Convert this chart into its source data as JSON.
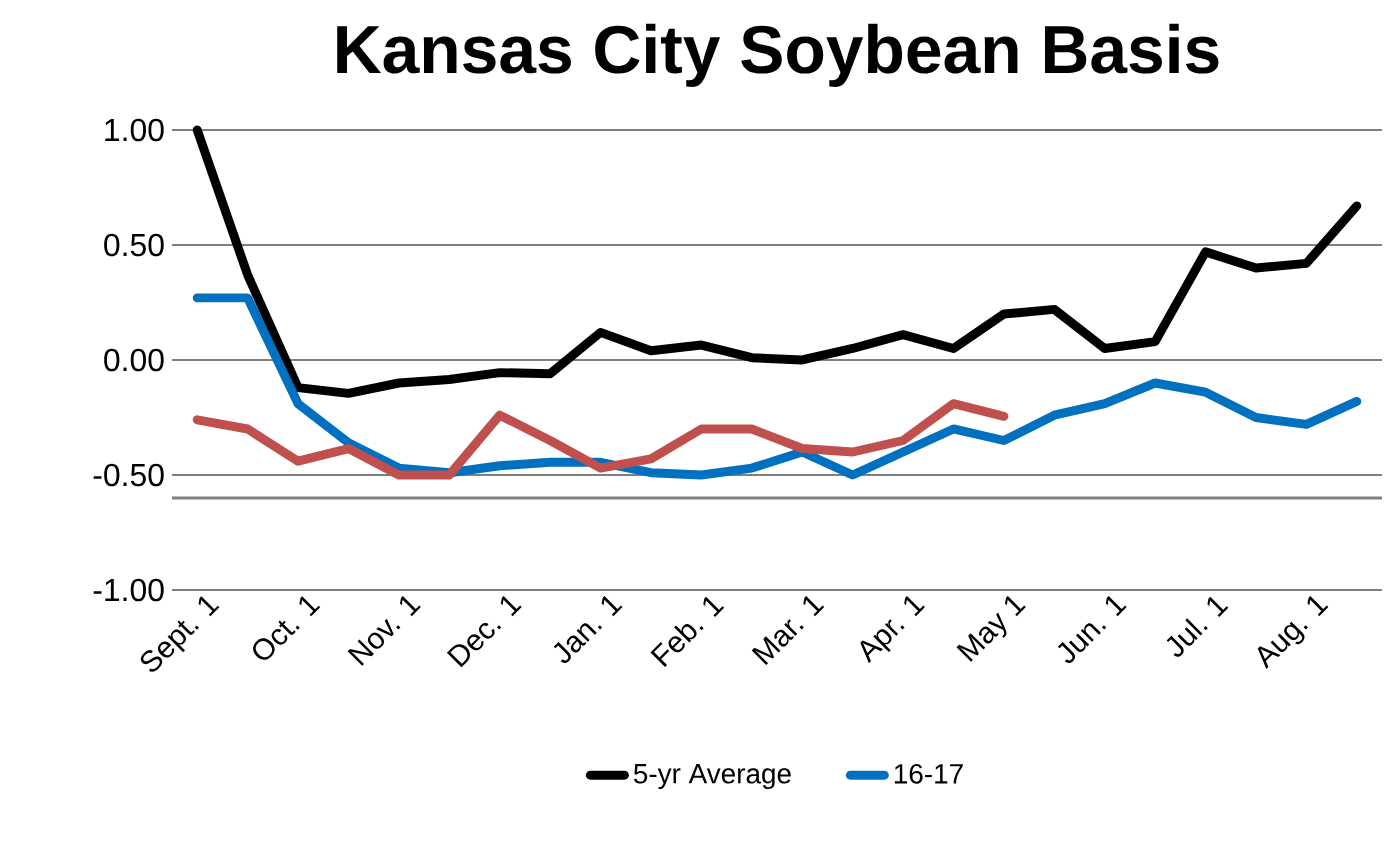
{
  "chart_data": {
    "type": "line",
    "title": "Kansas City Soybean Basis",
    "categories": [
      "Sept. 1",
      null,
      "Oct. 1",
      null,
      "Nov. 1",
      null,
      "Dec. 1",
      null,
      "Jan. 1",
      null,
      "Feb. 1",
      null,
      "Mar. 1",
      null,
      "Apr. 1",
      null,
      "May 1",
      null,
      "Jun. 1",
      null,
      "Jul. 1",
      null,
      "Aug. 1",
      null
    ],
    "series": [
      {
        "name": "5-yr Average",
        "color": "#000000",
        "values": [
          1.0,
          0.37,
          -0.12,
          -0.145,
          -0.1,
          -0.085,
          -0.055,
          -0.06,
          0.12,
          0.04,
          0.065,
          0.01,
          0.0,
          0.05,
          0.11,
          0.05,
          0.2,
          0.22,
          0.05,
          0.08,
          0.47,
          0.4,
          0.42,
          0.67
        ]
      },
      {
        "name": "16-17",
        "color": "#0070c0",
        "values": [
          0.27,
          0.27,
          -0.19,
          -0.36,
          -0.47,
          -0.49,
          -0.46,
          -0.445,
          -0.445,
          -0.49,
          -0.5,
          -0.47,
          -0.4,
          -0.5,
          -0.4,
          -0.3,
          -0.35,
          -0.24,
          -0.19,
          -0.1,
          -0.14,
          -0.25,
          -0.28,
          -0.18
        ]
      },
      {
        "color": "#c0504d",
        "values": [
          -0.26,
          -0.3,
          -0.44,
          -0.385,
          -0.5,
          -0.5,
          -0.24,
          -0.35,
          -0.47,
          -0.43,
          -0.3,
          -0.3,
          -0.385,
          -0.4,
          -0.35,
          -0.19,
          -0.245,
          null,
          null,
          null,
          null,
          null,
          null,
          null
        ]
      }
    ],
    "ylim": [
      -1,
      1
    ],
    "yticks": [
      {
        "value": 1,
        "label": "1.00"
      },
      {
        "value": 0.5,
        "label": "0.50"
      },
      {
        "value": 0,
        "label": "0.00"
      },
      {
        "value": -0.5,
        "label": "-0.50"
      },
      {
        "value": -1,
        "label": "-1.00"
      }
    ],
    "ref_lines": [
      {
        "axis": "y",
        "value": -0.6,
        "color": "#808080"
      }
    ],
    "grid": "y",
    "legend": "bottom",
    "marker": "none",
    "line_style": "solid"
  }
}
